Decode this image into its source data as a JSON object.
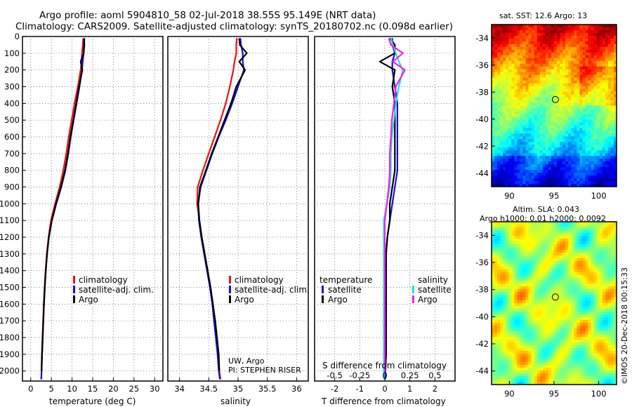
{
  "figure": {
    "title_line1": "Argo profile: aoml 5904810_58 02-Jul-2018 38.55S 95.149E (NRT data)",
    "title_line2": "Climatology: CARS2009. Satellite-adjusted climatology: synTS_20180702.nc (0.098d earlier)",
    "credit_line1": "UW, Argo",
    "credit_line2": "PI: STEPHEN RISER",
    "stamp": "©IMOS 20-Dec-2018 00:15:33"
  },
  "colors": {
    "climatology": "#ee1111",
    "satellite": "#1111dd",
    "argo": "#000000",
    "salinity_sat": "#22dddd",
    "salinity_argo": "#ee22ee"
  },
  "depth_ticks": [
    "0",
    "100",
    "200",
    "300",
    "400",
    "500",
    "600",
    "700",
    "800",
    "900",
    "1000",
    "1100",
    "1200",
    "1300",
    "1400",
    "1500",
    "1600",
    "1700",
    "1800",
    "1900",
    "2000"
  ],
  "chart_data": [
    {
      "type": "line",
      "id": "temperature",
      "xlabel": "temperature (deg C)",
      "ylabel": "depth",
      "xlim": [
        -2,
        32
      ],
      "ylim": [
        2060,
        0
      ],
      "xticks": [
        0,
        5,
        10,
        15,
        20,
        25,
        30
      ],
      "xtick_labels": [
        "0",
        "5",
        "10",
        "15",
        "20",
        "25",
        "30"
      ],
      "grid": true,
      "legend": [
        "climatology",
        "satellite-adj. clim.",
        "Argo"
      ],
      "depth": [
        10,
        50,
        100,
        150,
        200,
        300,
        400,
        500,
        600,
        700,
        800,
        900,
        1000,
        1100,
        1200,
        1300,
        1400,
        1500,
        1600,
        1700,
        1800,
        1900,
        2000,
        2050
      ],
      "series": [
        {
          "name": "climatology",
          "values": [
            12.7,
            12.6,
            12.4,
            12.3,
            12.1,
            11.4,
            10.6,
            9.9,
            9.2,
            8.6,
            7.9,
            7.0,
            5.9,
            4.9,
            4.3,
            3.9,
            3.6,
            3.35,
            3.15,
            3.0,
            2.85,
            2.7,
            2.6,
            2.55
          ]
        },
        {
          "name": "satellite-adj. clim.",
          "values": [
            13.0,
            12.9,
            12.8,
            12.6,
            12.4,
            11.8,
            11.1,
            10.4,
            9.7,
            9.1,
            8.4,
            7.4,
            6.2,
            5.1,
            4.4,
            3.95,
            3.65,
            3.4,
            3.2,
            3.05,
            2.9,
            2.75,
            2.62,
            2.58
          ]
        },
        {
          "name": "Argo",
          "values": [
            12.9,
            13.0,
            12.8,
            12.1,
            12.5,
            11.7,
            11.0,
            10.3,
            9.6,
            9.0,
            8.3,
            7.3,
            6.1,
            5.1,
            4.4,
            3.95,
            3.65,
            3.4,
            3.2,
            3.05,
            2.9,
            2.75,
            2.62,
            null
          ]
        }
      ]
    },
    {
      "type": "line",
      "id": "salinity",
      "xlabel": "salinity",
      "xlim": [
        33.8,
        36.2
      ],
      "ylim": [
        2060,
        0
      ],
      "xticks": [
        34,
        34.5,
        35,
        35.5,
        36
      ],
      "xtick_labels": [
        "34",
        "34.5",
        "35",
        "35.5",
        "36"
      ],
      "grid": true,
      "legend": [
        "climatology",
        "satellite-adj. clim.",
        "Argo"
      ],
      "depth": [
        10,
        50,
        100,
        150,
        200,
        300,
        400,
        500,
        600,
        700,
        800,
        900,
        1000,
        1100,
        1200,
        1300,
        1400,
        1500,
        1600,
        1700,
        1800,
        1900,
        2000,
        2050
      ],
      "series": [
        {
          "name": "climatology",
          "values": [
            34.98,
            34.97,
            34.97,
            34.94,
            34.92,
            34.86,
            34.79,
            34.7,
            34.6,
            34.5,
            34.4,
            34.31,
            34.3,
            34.34,
            34.38,
            34.43,
            34.48,
            34.53,
            34.57,
            34.6,
            34.63,
            34.66,
            34.68,
            34.7
          ]
        },
        {
          "name": "satellite-adj. clim.",
          "values": [
            35.04,
            35.05,
            35.08,
            35.08,
            35.1,
            35.0,
            34.9,
            34.79,
            34.67,
            34.56,
            34.46,
            34.36,
            34.32,
            34.33,
            34.37,
            34.42,
            34.47,
            34.52,
            34.56,
            34.59,
            34.62,
            34.65,
            34.67,
            34.69
          ]
        },
        {
          "name": "Argo",
          "values": [
            35.02,
            35.03,
            35.15,
            35.02,
            35.12,
            34.97,
            34.88,
            34.77,
            34.66,
            34.55,
            34.45,
            34.35,
            34.32,
            34.34,
            34.38,
            34.43,
            34.48,
            34.53,
            34.57,
            34.61,
            34.64,
            34.67,
            34.68,
            null
          ]
        }
      ]
    },
    {
      "type": "line",
      "id": "difference",
      "xlabel": "T difference from climatology",
      "x2label": "S difference from climatology",
      "xlim": [
        -2.8,
        2.8
      ],
      "ylim": [
        2060,
        0
      ],
      "xticks": [
        -2,
        -1,
        0,
        1,
        2
      ],
      "xtick_labels": [
        "-2",
        "-1",
        "0",
        "1",
        "2"
      ],
      "x2ticks": [
        -0.5,
        -0.25,
        0,
        0.25,
        0.5
      ],
      "x2tick_labels": [
        "-0.5",
        "-0.25",
        "0",
        "0.25",
        "0.5"
      ],
      "grid": true,
      "legend_temperature_title": "temperature",
      "legend_salinity_title": "salinity",
      "legend_temperature": [
        "satellite",
        "Argo"
      ],
      "legend_salinity": [
        "satellite",
        "Argo"
      ],
      "depth": [
        10,
        50,
        100,
        150,
        200,
        300,
        400,
        500,
        600,
        700,
        800,
        900,
        1000,
        1100,
        1200,
        1300,
        1400,
        1500,
        1600,
        1700,
        1800,
        1900,
        2000,
        2050
      ],
      "series": [
        {
          "name": "temperature satellite",
          "values": [
            0.3,
            0.3,
            0.4,
            0.3,
            0.3,
            0.4,
            0.5,
            0.5,
            0.5,
            0.5,
            0.5,
            0.4,
            0.3,
            0.2,
            0.1,
            0.05,
            0.05,
            0.05,
            0.05,
            0.05,
            0.05,
            0.05,
            0.02,
            0.02
          ]
        },
        {
          "name": "temperature Argo",
          "values": [
            0.2,
            0.4,
            0.4,
            -0.2,
            0.4,
            0.3,
            0.4,
            0.4,
            0.4,
            0.4,
            0.4,
            0.3,
            0.2,
            0.2,
            0.1,
            0.05,
            0.05,
            0.05,
            0.05,
            0.05,
            0.05,
            0.05,
            0.02,
            null
          ]
        },
        {
          "name": "salinity satellite",
          "values": [
            0.06,
            0.08,
            0.11,
            0.14,
            0.18,
            0.14,
            0.11,
            0.09,
            0.07,
            0.06,
            0.06,
            0.05,
            0.02,
            -0.01,
            -0.01,
            -0.01,
            -0.01,
            -0.01,
            -0.01,
            -0.01,
            -0.01,
            -0.01,
            -0.01,
            -0.01
          ]
        },
        {
          "name": "salinity Argo",
          "values": [
            0.04,
            0.06,
            0.18,
            0.08,
            0.2,
            0.11,
            0.09,
            0.07,
            0.06,
            0.05,
            0.05,
            0.04,
            0.02,
            0.0,
            0.0,
            0.0,
            0.0,
            0.0,
            0.0,
            0.0,
            0.0,
            0.0,
            0.0,
            null
          ]
        }
      ]
    },
    {
      "type": "heatmap",
      "id": "sst-map",
      "title": "sat. SST: 12.6 Argo: 13",
      "xlim": [
        88,
        102
      ],
      "ylim": [
        -45,
        -33
      ],
      "xticks": [
        90,
        95,
        100
      ],
      "xtick_labels": [
        "90",
        "95",
        "100"
      ],
      "yticks": [
        -34,
        -36,
        -38,
        -40,
        -42,
        -44
      ],
      "ytick_labels": [
        "-34",
        "-36",
        "-38",
        "-40",
        "-42",
        "-44"
      ],
      "argo_position": [
        95.149,
        -38.55
      ]
    },
    {
      "type": "heatmap",
      "id": "sla-map",
      "title": "Altim. SLA: 0.043",
      "subtitle": "Argo h1000: 0.01 h2000: 0.0092",
      "xlim": [
        88,
        102
      ],
      "ylim": [
        -45,
        -33
      ],
      "xticks": [
        90,
        95,
        100
      ],
      "xtick_labels": [
        "90",
        "95",
        "100"
      ],
      "yticks": [
        -34,
        -36,
        -38,
        -40,
        -42,
        -44
      ],
      "ytick_labels": [
        "-34",
        "-36",
        "-38",
        "-40",
        "-42",
        "-44"
      ],
      "argo_position": [
        95.149,
        -38.55
      ]
    }
  ]
}
